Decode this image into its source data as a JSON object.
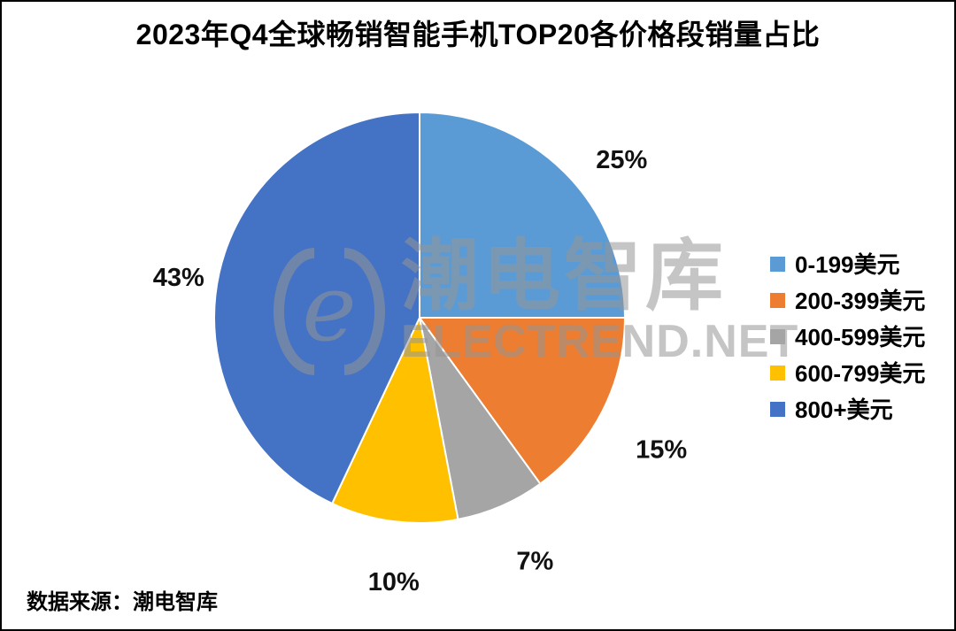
{
  "chart_data": {
    "type": "pie",
    "title": "2023年Q4全球畅销智能手机TOP20各价格段销量占比",
    "categories": [
      "0-199美元",
      "200-399美元",
      "400-599美元",
      "600-799美元",
      "800+美元"
    ],
    "values": [
      25,
      15,
      7,
      10,
      43
    ],
    "labels": [
      "25%",
      "15%",
      "7%",
      "10%",
      "43%"
    ],
    "colors": [
      "#5B9BD5",
      "#ED7D31",
      "#A5A5A5",
      "#FFC000",
      "#4472C4"
    ],
    "unit": "%",
    "start_angle_deg": 0,
    "direction": "clockwise",
    "legend_position": "right",
    "slice_border_color": "#FFFFFF",
    "source": "数据来源：潮电智库"
  },
  "watermark": {
    "cn": "潮电智库",
    "en": "ELECTREND.NET",
    "logo": "electrend-logo"
  }
}
